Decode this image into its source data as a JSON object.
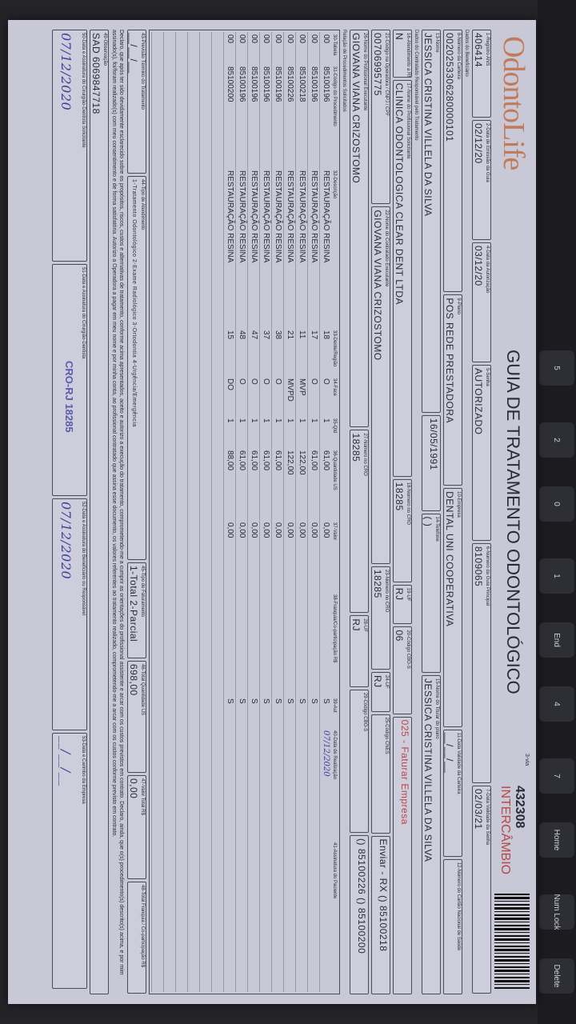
{
  "keyboard": {
    "keys": [
      "Delete",
      "Num Lock",
      "Home",
      "7",
      "4",
      "End",
      "1",
      "0",
      "2",
      "5"
    ]
  },
  "form": {
    "logo": "OdontoLife",
    "title": "GUIA DE TRATAMENTO ODONTOLÓGICO",
    "via": "3-via",
    "guide_number": "432308",
    "guide_type": "INTERCÂMBIO",
    "rows": [
      [
        {
          "label": "1-Registro ANS",
          "value": "406414"
        },
        {
          "label": "2-Data de Emissão da Guia",
          "value": "02/12/20"
        },
        {
          "label": "4-Data da Autorização",
          "value": "03/12/20"
        },
        {
          "label": "5-Senha",
          "value": "AUTORIZADO"
        },
        {
          "label": "6-Número da Guia Principal",
          "value": "8109065"
        },
        {
          "label": "7-Data Validade da Senha",
          "value": "02/03/21"
        }
      ],
      [
        {
          "label": "8-Número da Carteira",
          "value": "0020253306280000101"
        },
        {
          "label": "9-Plano",
          "value": "POS REDE PRESTADORA"
        },
        {
          "label": "10-Empresa",
          "value": "DENTAL UNI COOPERATIVA"
        },
        {
          "label": "11-Data Validade da Carteira",
          "value": "__/__/__"
        },
        {
          "label": "12-Número do Cartão Nacional de Saúde",
          "value": ""
        }
      ],
      [
        {
          "label": "13-Nome",
          "value": "JESSICA CRISTINA VILLELA DA SILVA"
        },
        {
          "label": "",
          "value": "16/05/1991"
        },
        {
          "label": "14-Telefone",
          "value": "(  )"
        },
        {
          "label": "15-Nome do Titular do plano",
          "value": "JESSICA CRISTINA VILLELA DA SILVA"
        }
      ],
      [
        {
          "label": "16-Atendimento a RN",
          "value": "N"
        },
        {
          "label": "17-Nome do Profissional Solicitante",
          "value": "CLINICA ODONTOLOGICA CLEAR DENT LTDA"
        },
        {
          "label": "18-Número no CRO",
          "value": "18285"
        },
        {
          "label": "19-UF",
          "value": "RJ"
        },
        {
          "label": "20-Código CBO-S",
          "value": "06"
        },
        {
          "label": "",
          "value": "025 - Faturar Empresa"
        }
      ],
      [
        {
          "label": "21-Código na Operadora / CNPJ / CPF",
          "value": "00706995775"
        },
        {
          "label": "22-Nome do Contratado Executante",
          "value": "GIOVANA VIANA CRIZOSTOMO"
        },
        {
          "label": "23-Número no CRO",
          "value": "18285"
        },
        {
          "label": "24-UF",
          "value": "RJ"
        },
        {
          "label": "25-Código CNES",
          "value": ""
        },
        {
          "label": "",
          "value": "Enviar - RX  () 85100218"
        }
      ],
      [
        {
          "label": "26-Nome do Profissional Executante",
          "value": "GIOVANA VIANA CRIZOSTOMO"
        },
        {
          "label": "27-Número no CRO",
          "value": "18285"
        },
        {
          "label": "28-UF",
          "value": "RJ"
        },
        {
          "label": "29-Código CBO-S",
          "value": ""
        },
        {
          "label": "",
          "value": "() 85100226  () 85100200"
        }
      ]
    ],
    "section_beneficiary": "Dados do Beneficiário",
    "section_contracted": "Dados do Contratado Responsável pelo Tratamento",
    "section_procedures": "Relação de Procedimentos Solicitados",
    "table_headers": [
      "30-Tabela",
      "31-Código do Procedimento",
      "32-Descrição",
      "33-Dente/Região",
      "34-Face",
      "35-Qtd",
      "36-Quantidade US",
      "37-Valor",
      "38-Franquia/Co-participação R$",
      "39-Aut",
      "40-Data de Realização",
      "41-Assinatura do Paciente"
    ],
    "procedures": [
      [
        "00",
        "85100196",
        "RESTAURAÇÃO RESINA",
        "18",
        "O",
        "1",
        "61,00",
        "0,00",
        "",
        "S",
        "07/12/2020",
        ""
      ],
      [
        "00",
        "85100196",
        "RESTAURAÇÃO RESINA",
        "17",
        "O",
        "1",
        "61,00",
        "0,00",
        "",
        "S",
        "",
        ""
      ],
      [
        "00",
        "85100218",
        "RESTAURAÇÃO RESINA",
        "11",
        "MVP",
        "1",
        "122,00",
        "0,00",
        "",
        "S",
        "",
        ""
      ],
      [
        "00",
        "85100226",
        "RESTAURAÇÃO RESINA",
        "21",
        "MVPD",
        "1",
        "122,00",
        "0,00",
        "",
        "S",
        "",
        ""
      ],
      [
        "00",
        "85100196",
        "RESTAURAÇÃO RESINA",
        "38",
        "O",
        "1",
        "61,00",
        "0,00",
        "",
        "S",
        "",
        ""
      ],
      [
        "00",
        "85100196",
        "RESTAURAÇÃO RESINA",
        "37",
        "O",
        "1",
        "61,00",
        "0,00",
        "",
        "S",
        "",
        ""
      ],
      [
        "00",
        "85100196",
        "RESTAURAÇÃO RESINA",
        "47",
        "O",
        "1",
        "61,00",
        "0,00",
        "",
        "S",
        "",
        ""
      ],
      [
        "00",
        "85100196",
        "RESTAURAÇÃO RESINA",
        "48",
        "O",
        "1",
        "61,00",
        "0,00",
        "",
        "S",
        "",
        ""
      ],
      [
        "00",
        "85100200",
        "RESTAURAÇÃO RESINA",
        "15",
        "DO",
        "1",
        "88,00",
        "0,00",
        "",
        "S",
        "",
        ""
      ],
      [
        "",
        "",
        "",
        "",
        "",
        "",
        "",
        "",
        "",
        "",
        "",
        ""
      ],
      [
        "",
        "",
        "",
        "",
        "",
        "",
        "",
        "",
        "",
        "",
        "",
        ""
      ],
      [
        "",
        "",
        "",
        "",
        "",
        "",
        "",
        "",
        "",
        "",
        "",
        ""
      ],
      [
        "",
        "",
        "",
        "",
        "",
        "",
        "",
        "",
        "",
        "",
        "",
        ""
      ],
      [
        "",
        "",
        "",
        "",
        "",
        "",
        "",
        "",
        "",
        "",
        "",
        ""
      ],
      [
        "",
        "",
        "",
        "",
        "",
        "",
        "",
        "",
        "",
        "",
        "",
        ""
      ]
    ],
    "footer": [
      {
        "label": "43-Previsão Término do Tratamento",
        "value": "__/__/__"
      },
      {
        "label": "44-Tipo de Atendimento",
        "value": "1-Tratamento Odontológico 2-Exame Radiológico 3-Ortodontia 4-Urgência/Emergência"
      },
      {
        "label": "45-Tipo de Faturamento",
        "value": "1-Total 2-Parcial"
      },
      {
        "label": "46-Total Quantidade US",
        "value": "698,00"
      },
      {
        "label": "47-Valor Total R$",
        "value": "0,00"
      },
      {
        "label": "48-Total Franquia / Co-participação R$",
        "value": ""
      }
    ],
    "declaration": "Declaro, que após ter sido devidamente esclarecido sobre os propósitos, riscos, custos e alternativas de tratamento, conforme acima apresentados, aceito e autorizo a execução do tratamento, comprometendo-me a cumprir as orientações do profissional assistente e arcar com os custos previstos em contrato. Declaro, ainda, que o(s) procedimento(s) descrito(s) acima, e por mim assinado(s), foi/foram realizado(s) com meu consentimento e de forma satisfatória. Autorizo a Operadora a pagar em meu nome e por minha conta, ao profissional contratado que assina esse documento, os valores referentes ao tratamento realizado, comprometendo-me a arcar com os custos conforme previsto em contrato.",
    "observation": {
      "label": "49-Observação",
      "value": "SAD 6069847718"
    },
    "signatures": [
      {
        "label": "50-Data e Assinatura do Cirurgião-Dentista Solicitante",
        "value": "07/12/2020"
      },
      {
        "label": "51-Data e Assinatura do Cirurgião-Dentista",
        "value": ""
      },
      {
        "label": "52-Data e Assinatura do Beneficiário ou Responsável",
        "value": "07/12/2020"
      },
      {
        "label": "53-Data e Carimbo da Empresa",
        "value": "__/__/__"
      }
    ],
    "stamp": "CRO-RJ 18285"
  }
}
